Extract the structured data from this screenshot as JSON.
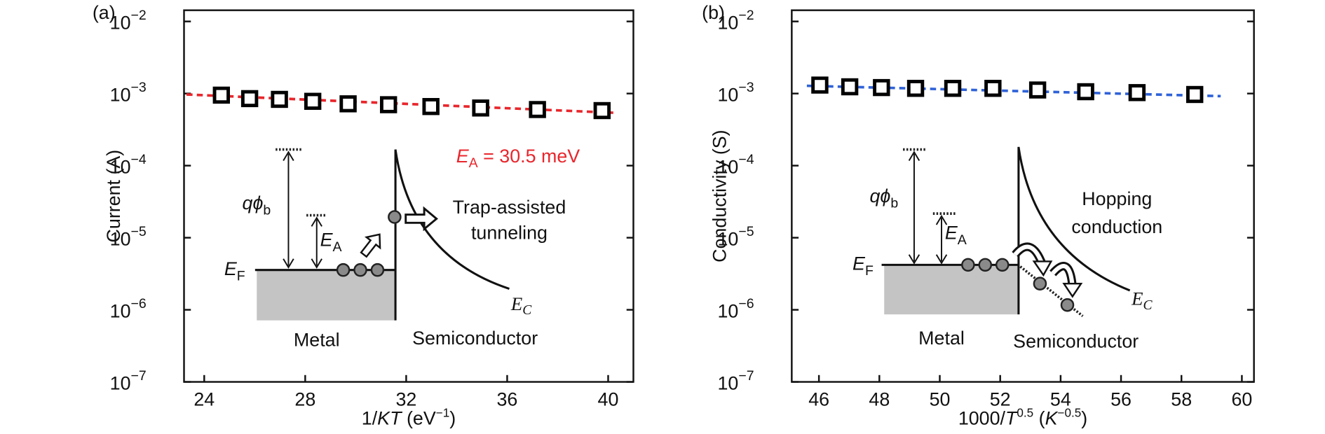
{
  "chart_data": [
    {
      "type": "scatter",
      "panel": "(a)",
      "xlabel": [
        "1/",
        "KT",
        " (eV",
        "−1",
        ")"
      ],
      "ylabel": "Current (A)",
      "xlim": [
        23.2,
        41
      ],
      "xticks": [
        24,
        28,
        32,
        36,
        40
      ],
      "ylim": [
        1e-07,
        0.0143
      ],
      "log_y": true,
      "yticks": [
        {
          "value": 1e-07,
          "label": "10",
          "exp": "−7"
        },
        {
          "value": 1e-06,
          "label": "10",
          "exp": "−6"
        },
        {
          "value": 1e-05,
          "label": "10",
          "exp": "−5"
        },
        {
          "value": 0.0001,
          "label": "10",
          "exp": "−4"
        },
        {
          "value": 0.001,
          "label": "10",
          "exp": "−3"
        },
        {
          "value": 0.01,
          "label": "10",
          "exp": "−2"
        }
      ],
      "series": [
        {
          "color": "#000000",
          "marker": "square",
          "x": [
            24.68,
            25.8,
            26.98,
            28.3,
            29.7,
            31.3,
            32.98,
            34.95,
            37.2,
            39.76
          ],
          "values": [
            0.00095,
            0.00085,
            0.00083,
            0.00078,
            0.00072,
            0.0007,
            0.00066,
            0.00063,
            0.0006,
            0.00058
          ]
        },
        {
          "color": "#e8262c",
          "line": "dashed",
          "x": [
            23.3,
            40.3
          ],
          "values": [
            0.00097,
            0.00054
          ]
        }
      ],
      "annotation": [
        "E",
        "A",
        " = 30.5 meV"
      ],
      "annotation_color": "#e8262c",
      "inset_labels": [
        "qϕ",
        "b",
        "E",
        "A",
        "E",
        "F",
        "Trap-assisted",
        "tunneling",
        "Metal",
        "Semiconductor",
        "E",
        "C"
      ]
    },
    {
      "type": "scatter",
      "panel": "(b)",
      "xlabel": [
        "1000/",
        "T",
        "0.5",
        " (",
        "K",
        "−0.5",
        ")"
      ],
      "ylabel": "Conductivity (S)",
      "xlim": [
        45.1,
        60.4
      ],
      "xticks": [
        46,
        48,
        50,
        52,
        54,
        56,
        58,
        60
      ],
      "ylim": [
        1e-07,
        0.0143
      ],
      "log_y": true,
      "yticks": [
        {
          "value": 1e-07,
          "label": "10",
          "exp": "−7"
        },
        {
          "value": 1e-06,
          "label": "10",
          "exp": "−6"
        },
        {
          "value": 1e-05,
          "label": "10",
          "exp": "−5"
        },
        {
          "value": 0.0001,
          "label": "10",
          "exp": "−4"
        },
        {
          "value": 0.001,
          "label": "10",
          "exp": "−3"
        },
        {
          "value": 0.01,
          "label": "10",
          "exp": "−2"
        }
      ],
      "series": [
        {
          "color": "#000000",
          "marker": "square",
          "x": [
            46.03,
            47.02,
            48.07,
            49.2,
            50.43,
            51.76,
            53.24,
            54.83,
            56.53,
            58.44
          ],
          "values": [
            0.00131,
            0.00124,
            0.00121,
            0.00118,
            0.00118,
            0.00118,
            0.00112,
            0.00106,
            0.00103,
            0.00097
          ]
        },
        {
          "color": "#2f62d8",
          "line": "dashed",
          "x": [
            45.6,
            59.3
          ],
          "values": [
            0.00128,
            0.00092
          ]
        }
      ],
      "inset_labels": [
        "qϕ",
        "b",
        "E",
        "A",
        "E",
        "F",
        "Hopping",
        "conduction",
        "Metal",
        "Semiconductor",
        "E",
        "C"
      ]
    }
  ]
}
